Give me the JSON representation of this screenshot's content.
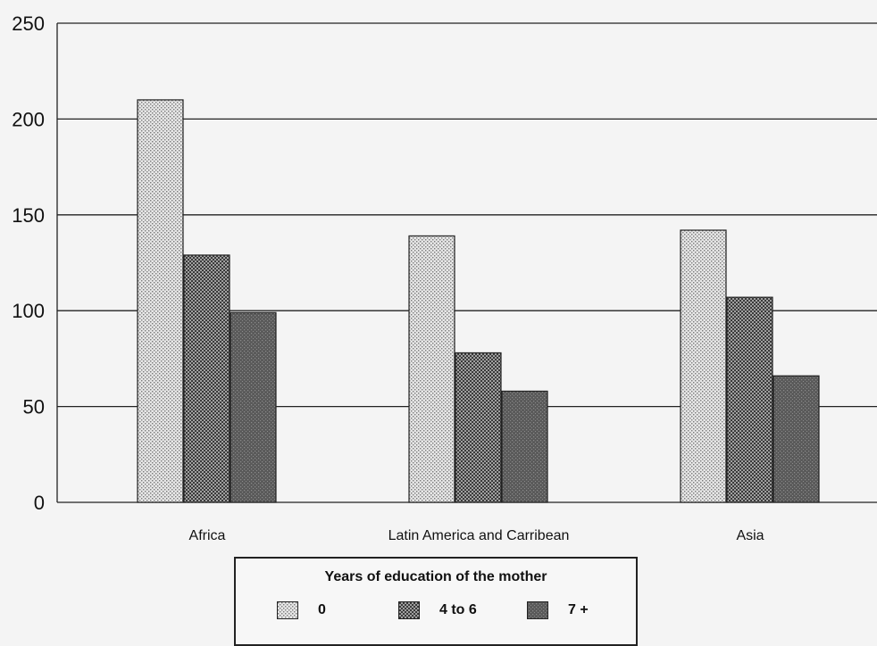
{
  "chart_data": {
    "type": "bar",
    "title": "",
    "xlabel": "",
    "ylabel": "",
    "ylim": [
      0,
      250
    ],
    "yticks": [
      0,
      50,
      100,
      150,
      200,
      250
    ],
    "grid": true,
    "categories": [
      "Africa",
      "Latin America and Carribean",
      "Asia"
    ],
    "series": [
      {
        "name": "0",
        "values": [
          210,
          139,
          142
        ],
        "color": "#d9d9d9",
        "pattern": "light-dots"
      },
      {
        "name": "4 to 6",
        "values": [
          129,
          78,
          107
        ],
        "color": "#8c8c8c",
        "pattern": "medium-dots"
      },
      {
        "name": "7 +",
        "values": [
          99,
          58,
          66
        ],
        "color": "#555555",
        "pattern": "dark-dots"
      }
    ],
    "legend": {
      "title": "Years of education of the mother",
      "position": "bottom-center"
    }
  }
}
